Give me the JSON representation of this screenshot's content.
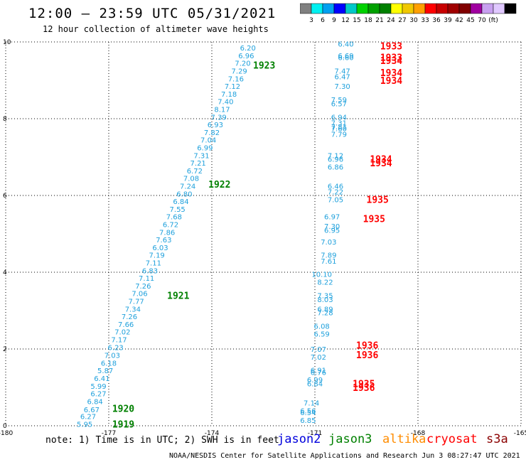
{
  "header": {
    "title": "12:00 – 23:59 UTC 05/31/2021",
    "subtitle": "12 hour collection of altimeter wave heights"
  },
  "colorbar": {
    "colors": [
      "#808080",
      "#00f0f0",
      "#00a0f0",
      "#0000ff",
      "#00c8c8",
      "#00d200",
      "#00a000",
      "#008000",
      "#ffff00",
      "#f0c800",
      "#ffa000",
      "#ff0000",
      "#c80000",
      "#a00000",
      "#800000",
      "#a000a0",
      "#c8a0f0",
      "#e0c8ff",
      "#000000"
    ],
    "labels": [
      "3",
      "6",
      "9",
      "12",
      "15",
      "18",
      "21",
      "24",
      "27",
      "30",
      "33",
      "36",
      "39",
      "42",
      "45",
      "70",
      "(ft)"
    ]
  },
  "note": "note:  1) Time is in UTC;  2) SWH is in feet",
  "legend": [
    {
      "label": "jason2",
      "color": "#0000dd"
    },
    {
      "label": "jason3",
      "color": "#008000"
    },
    {
      "label": "altika",
      "color": "#ff8c00"
    },
    {
      "label": "cryosat",
      "color": "#ff0000"
    },
    {
      "label": "s3a",
      "color": "#8b0000"
    }
  ],
  "footer": "NOAA/NESDIS Center for Satellite Applications and Research    Jun  3 08:27:47 UTC 2021",
  "chart_data": {
    "type": "scatter",
    "xlim": [
      -180,
      -165
    ],
    "ylim": [
      0,
      10
    ],
    "x_ticks": [
      "-180",
      "-177",
      "-174",
      "-171",
      "-168",
      "-165"
    ],
    "y_ticks": [
      "0",
      "2",
      "4",
      "6",
      "8",
      "10"
    ],
    "grid": true,
    "swh_color": "#1ea0dc",
    "series": [
      {
        "name": "jason3",
        "label_color": "#008000",
        "points": [
          {
            "x": -177.7,
            "y": 0.05,
            "v": "5.95"
          },
          {
            "x": -177.6,
            "y": 0.25,
            "v": "6.27"
          },
          {
            "x": -177.5,
            "y": 0.43,
            "v": "6.67"
          },
          {
            "x": -177.4,
            "y": 0.64,
            "v": "6.84"
          },
          {
            "x": -177.3,
            "y": 0.84,
            "v": "6.27"
          },
          {
            "x": -177.3,
            "y": 1.04,
            "v": "5.99"
          },
          {
            "x": -177.2,
            "y": 1.24,
            "v": "6.41"
          },
          {
            "x": -177.1,
            "y": 1.44,
            "v": "5.87"
          },
          {
            "x": -177.0,
            "y": 1.64,
            "v": "6.18"
          },
          {
            "x": -176.9,
            "y": 1.84,
            "v": "7.03"
          },
          {
            "x": -176.8,
            "y": 2.05,
            "v": "6.23"
          },
          {
            "x": -176.7,
            "y": 2.25,
            "v": "7.17"
          },
          {
            "x": -176.6,
            "y": 2.45,
            "v": "7.02"
          },
          {
            "x": -176.5,
            "y": 2.65,
            "v": "7.66"
          },
          {
            "x": -176.4,
            "y": 2.85,
            "v": "7.26"
          },
          {
            "x": -176.3,
            "y": 3.05,
            "v": "7.34"
          },
          {
            "x": -176.2,
            "y": 3.25,
            "v": "7.77"
          },
          {
            "x": -176.1,
            "y": 3.45,
            "v": "7.06"
          },
          {
            "x": -176.0,
            "y": 3.65,
            "v": "7.26"
          },
          {
            "x": -175.9,
            "y": 3.85,
            "v": "7.11"
          },
          {
            "x": -175.8,
            "y": 4.05,
            "v": "6.83"
          },
          {
            "x": -175.7,
            "y": 4.25,
            "v": "7.11"
          },
          {
            "x": -175.6,
            "y": 4.45,
            "v": "7.19"
          },
          {
            "x": -175.5,
            "y": 4.65,
            "v": "6.03"
          },
          {
            "x": -175.4,
            "y": 4.85,
            "v": "7.63"
          },
          {
            "x": -175.3,
            "y": 5.05,
            "v": "7.86"
          },
          {
            "x": -175.2,
            "y": 5.25,
            "v": "6.72"
          },
          {
            "x": -175.1,
            "y": 5.45,
            "v": "7.68"
          },
          {
            "x": -175.0,
            "y": 5.65,
            "v": "7.55"
          },
          {
            "x": -174.9,
            "y": 5.85,
            "v": "6.84"
          },
          {
            "x": -174.8,
            "y": 6.05,
            "v": "6.80"
          },
          {
            "x": -174.7,
            "y": 6.25,
            "v": "7.24"
          },
          {
            "x": -174.6,
            "y": 6.45,
            "v": "7.08"
          },
          {
            "x": -174.5,
            "y": 6.65,
            "v": "6.72"
          },
          {
            "x": -174.4,
            "y": 6.85,
            "v": "7.21"
          },
          {
            "x": -174.3,
            "y": 7.05,
            "v": "7.31"
          },
          {
            "x": -174.2,
            "y": 7.25,
            "v": "6.99"
          },
          {
            "x": -174.1,
            "y": 7.45,
            "v": "7.04"
          },
          {
            "x": -174.0,
            "y": 7.65,
            "v": "7.82"
          },
          {
            "x": -173.9,
            "y": 7.85,
            "v": "6.93"
          },
          {
            "x": -173.8,
            "y": 8.05,
            "v": "7.39"
          },
          {
            "x": -173.7,
            "y": 8.25,
            "v": "8.17"
          },
          {
            "x": -173.6,
            "y": 8.45,
            "v": "7.40"
          },
          {
            "x": -173.5,
            "y": 8.65,
            "v": "7.18"
          },
          {
            "x": -173.4,
            "y": 8.85,
            "v": "7.12"
          },
          {
            "x": -173.3,
            "y": 9.05,
            "v": "7.16"
          },
          {
            "x": -173.2,
            "y": 9.25,
            "v": "7.29"
          },
          {
            "x": -173.1,
            "y": 9.45,
            "v": "7.20"
          },
          {
            "x": -173.0,
            "y": 9.65,
            "v": "6.96"
          },
          {
            "x": -172.95,
            "y": 9.85,
            "v": "6.20"
          }
        ],
        "time_labels": [
          {
            "x": -176.9,
            "y": 0.05,
            "t": "1919"
          },
          {
            "x": -176.9,
            "y": 0.45,
            "t": "1920"
          },
          {
            "x": -175.3,
            "y": 3.4,
            "t": "1921"
          },
          {
            "x": -174.1,
            "y": 6.3,
            "t": "1922"
          },
          {
            "x": -172.8,
            "y": 9.4,
            "t": "1923"
          }
        ]
      },
      {
        "name": "cryosat",
        "label_color": "#ff0000",
        "points": [
          {
            "x": -171.2,
            "y": 0.15,
            "v": "6.85"
          },
          {
            "x": -171.2,
            "y": 0.35,
            "v": "6.54"
          },
          {
            "x": -171.2,
            "y": 0.4,
            "v": "6.56"
          },
          {
            "x": -171.1,
            "y": 0.6,
            "v": "7.14"
          },
          {
            "x": -171.0,
            "y": 1.1,
            "v": "6.84"
          },
          {
            "x": -171.0,
            "y": 1.2,
            "v": "6.99"
          },
          {
            "x": -170.9,
            "y": 1.4,
            "v": "6.76"
          },
          {
            "x": -170.9,
            "y": 1.45,
            "v": "6.91"
          },
          {
            "x": -170.9,
            "y": 1.8,
            "v": "7.02"
          },
          {
            "x": -170.9,
            "y": 2.0,
            "v": "7.07"
          },
          {
            "x": -170.8,
            "y": 2.4,
            "v": "6.59"
          },
          {
            "x": -170.8,
            "y": 2.6,
            "v": "6.08"
          },
          {
            "x": -170.7,
            "y": 2.95,
            "v": "7.28"
          },
          {
            "x": -170.7,
            "y": 3.05,
            "v": "6.89"
          },
          {
            "x": -170.7,
            "y": 3.3,
            "v": "8.03"
          },
          {
            "x": -170.7,
            "y": 3.4,
            "v": "7.35"
          },
          {
            "x": -170.7,
            "y": 3.75,
            "v": "8.22"
          },
          {
            "x": -170.8,
            "y": 3.95,
            "v": "10.10"
          },
          {
            "x": -170.6,
            "y": 4.3,
            "v": "7.61"
          },
          {
            "x": -170.6,
            "y": 4.45,
            "v": "7.89"
          },
          {
            "x": -170.6,
            "y": 4.8,
            "v": "7.03"
          },
          {
            "x": -170.5,
            "y": 5.1,
            "v": "6.95"
          },
          {
            "x": -170.5,
            "y": 5.2,
            "v": "7.30"
          },
          {
            "x": -170.5,
            "y": 5.45,
            "v": "6.97"
          },
          {
            "x": -170.4,
            "y": 5.9,
            "v": "7.05"
          },
          {
            "x": -170.4,
            "y": 6.1,
            "v": "7.22"
          },
          {
            "x": -170.4,
            "y": 6.25,
            "v": "6.46"
          },
          {
            "x": -170.4,
            "y": 6.75,
            "v": "6.86"
          },
          {
            "x": -170.4,
            "y": 6.95,
            "v": "6.96"
          },
          {
            "x": -170.4,
            "y": 7.05,
            "v": "7.12"
          },
          {
            "x": -170.3,
            "y": 7.6,
            "v": "7.79"
          },
          {
            "x": -170.3,
            "y": 7.75,
            "v": "7.60"
          },
          {
            "x": -170.3,
            "y": 7.8,
            "v": "7.81"
          },
          {
            "x": -170.3,
            "y": 7.9,
            "v": "7.31"
          },
          {
            "x": -170.3,
            "y": 8.05,
            "v": "6.94"
          },
          {
            "x": -170.3,
            "y": 8.4,
            "v": "6.57"
          },
          {
            "x": -170.3,
            "y": 8.5,
            "v": "7.59"
          },
          {
            "x": -170.2,
            "y": 8.85,
            "v": "7.30"
          },
          {
            "x": -170.2,
            "y": 9.1,
            "v": "6.47"
          },
          {
            "x": -170.2,
            "y": 9.25,
            "v": "7.47"
          },
          {
            "x": -170.1,
            "y": 9.6,
            "v": "6.60"
          },
          {
            "x": -170.1,
            "y": 9.65,
            "v": "6.69"
          },
          {
            "x": -170.1,
            "y": 9.95,
            "v": "6.40"
          }
        ],
        "time_labels": [
          {
            "x": -169.1,
            "y": 9.9,
            "t": "1933"
          },
          {
            "x": -169.1,
            "y": 9.6,
            "t": "1933"
          },
          {
            "x": -169.1,
            "y": 9.52,
            "t": "1934"
          },
          {
            "x": -169.1,
            "y": 9.2,
            "t": "1934"
          },
          {
            "x": -169.1,
            "y": 9.0,
            "t": "1934"
          },
          {
            "x": -169.4,
            "y": 6.95,
            "t": "1934"
          },
          {
            "x": -169.4,
            "y": 6.85,
            "t": "1934"
          },
          {
            "x": -169.5,
            "y": 5.9,
            "t": "1935"
          },
          {
            "x": -169.6,
            "y": 5.4,
            "t": "1935"
          },
          {
            "x": -169.9,
            "y": 1.1,
            "t": "1935"
          },
          {
            "x": -169.9,
            "y": 1.0,
            "t": "1936"
          },
          {
            "x": -169.8,
            "y": 2.1,
            "t": "1936"
          },
          {
            "x": -169.8,
            "y": 1.85,
            "t": "1936"
          }
        ]
      }
    ]
  }
}
